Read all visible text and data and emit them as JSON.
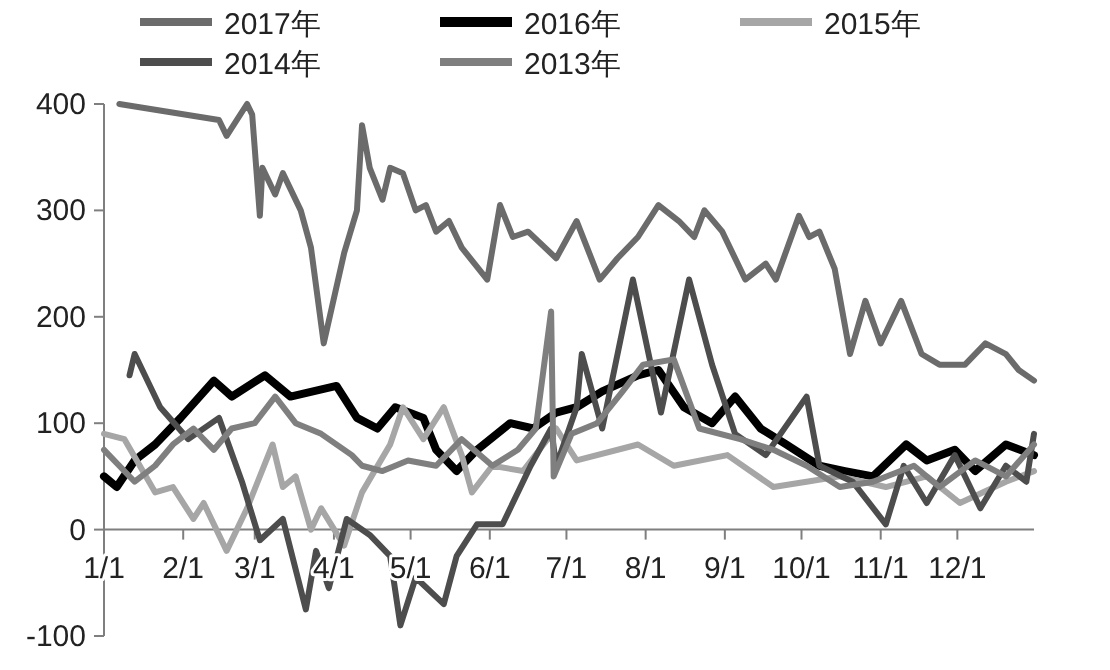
{
  "chart_data": {
    "type": "line",
    "legend": "top",
    "xlim": [
      "--01-01",
      "--12-31"
    ],
    "ylim": [
      -100,
      400
    ],
    "xticks": [
      {
        "value": "--01-01",
        "label": "1/1"
      },
      {
        "value": "--02-01",
        "label": "2/1"
      },
      {
        "value": "--03-01",
        "label": "3/1"
      },
      {
        "value": "--04-01",
        "label": "4/1"
      },
      {
        "value": "--05-01",
        "label": "5/1"
      },
      {
        "value": "--06-01",
        "label": "6/1"
      },
      {
        "value": "--07-01",
        "label": "7/1"
      },
      {
        "value": "--08-01",
        "label": "8/1"
      },
      {
        "value": "--09-01",
        "label": "9/1"
      },
      {
        "value": "--10-01",
        "label": "10/1"
      },
      {
        "value": "--11-01",
        "label": "11/1"
      },
      {
        "value": "--12-01",
        "label": "12/1"
      }
    ],
    "yticks": [
      -100,
      0,
      100,
      200,
      300,
      400
    ],
    "series": [
      {
        "name": "2017年",
        "color": "#6b6b6b",
        "x": [
          "--01-07",
          "--02-15",
          "--02-18",
          "--02-26",
          "--02-28",
          "--03-03",
          "--03-04",
          "--03-09",
          "--03-12",
          "--03-19",
          "--03-23",
          "--03-28",
          "--04-05",
          "--04-10",
          "--04-12",
          "--04-15",
          "--04-20",
          "--04-23",
          "--04-28",
          "--05-03",
          "--05-07",
          "--05-11",
          "--05-16",
          "--05-21",
          "--05-31",
          "--06-05",
          "--06-10",
          "--06-16",
          "--06-27",
          "--07-05",
          "--07-14",
          "--07-21",
          "--07-29",
          "--08-06",
          "--08-14",
          "--08-20",
          "--08-24",
          "--08-31",
          "--09-09",
          "--09-17",
          "--09-21",
          "--09-30",
          "--10-04",
          "--10-08",
          "--10-14",
          "--10-20",
          "--10-26",
          "--11-01",
          "--11-09",
          "--11-17",
          "--11-24",
          "--12-04",
          "--12-12",
          "--12-20",
          "--12-25",
          "--12-31"
        ],
        "values": [
          400,
          385,
          370,
          400,
          390,
          295,
          340,
          315,
          335,
          300,
          265,
          175,
          260,
          300,
          380,
          340,
          310,
          340,
          335,
          300,
          305,
          280,
          290,
          265,
          235,
          305,
          275,
          280,
          255,
          290,
          235,
          255,
          275,
          305,
          290,
          275,
          300,
          280,
          235,
          250,
          235,
          295,
          275,
          280,
          245,
          165,
          215,
          175,
          215,
          165,
          155,
          155,
          175,
          165,
          150,
          140
        ]
      },
      {
        "name": "2016年",
        "color": "#000000",
        "x": [
          "--01-01",
          "--01-06",
          "--01-13",
          "--01-21",
          "--01-31",
          "--02-13",
          "--02-20",
          "--03-05",
          "--03-15",
          "--04-02",
          "--04-10",
          "--04-18",
          "--04-25",
          "--05-06",
          "--05-11",
          "--05-19",
          "--05-27",
          "--06-09",
          "--06-18",
          "--06-27",
          "--07-05",
          "--07-15",
          "--07-29",
          "--08-06",
          "--08-16",
          "--08-27",
          "--09-05",
          "--09-15",
          "--09-25",
          "--10-08",
          "--10-18",
          "--10-29",
          "--11-11",
          "--11-19",
          "--11-30",
          "--12-08",
          "--12-20",
          "--12-31"
        ],
        "values": [
          50,
          40,
          65,
          80,
          105,
          140,
          125,
          145,
          125,
          135,
          105,
          95,
          115,
          105,
          75,
          55,
          75,
          100,
          95,
          110,
          115,
          130,
          145,
          150,
          115,
          100,
          125,
          95,
          80,
          60,
          55,
          50,
          80,
          65,
          75,
          55,
          80,
          70
        ]
      },
      {
        "name": "2015年",
        "color": "#a6a6a6",
        "x": [
          "--01-01",
          "--01-09",
          "--01-21",
          "--01-28",
          "--02-05",
          "--02-09",
          "--02-18",
          "--02-26",
          "--03-08",
          "--03-12",
          "--03-17",
          "--03-23",
          "--03-27",
          "--04-05",
          "--04-12",
          "--04-23",
          "--04-28",
          "--05-06",
          "--05-14",
          "--05-21",
          "--05-25",
          "--06-02",
          "--06-14",
          "--06-22",
          "--06-27",
          "--07-05",
          "--07-29",
          "--08-12",
          "--09-02",
          "--09-20",
          "--10-03",
          "--10-16",
          "--11-03",
          "--11-19",
          "--12-02",
          "--12-20",
          "--12-31"
        ],
        "values": [
          90,
          85,
          35,
          40,
          10,
          25,
          -20,
          20,
          80,
          40,
          50,
          0,
          20,
          -15,
          35,
          80,
          115,
          85,
          115,
          70,
          35,
          60,
          55,
          80,
          95,
          65,
          80,
          60,
          70,
          40,
          45,
          50,
          40,
          50,
          25,
          45,
          55
        ]
      },
      {
        "name": "2014年",
        "color": "#4d4d4d",
        "x": [
          "--01-11",
          "--01-13",
          "--01-23",
          "--02-03",
          "--02-15",
          "--02-24",
          "--03-03",
          "--03-12",
          "--03-21",
          "--03-25",
          "--03-30",
          "--04-06",
          "--04-15",
          "--04-23",
          "--04-27",
          "--05-03",
          "--05-14",
          "--05-19",
          "--05-27",
          "--06-06",
          "--06-17",
          "--06-25",
          "--06-27",
          "--07-05",
          "--07-07",
          "--07-15",
          "--07-27",
          "--08-07",
          "--08-18",
          "--08-27",
          "--09-05",
          "--09-17",
          "--10-03",
          "--10-08",
          "--10-21",
          "--11-03",
          "--11-10",
          "--11-19",
          "--11-30",
          "--12-10",
          "--12-20",
          "--12-28",
          "--12-31"
        ],
        "values": [
          145,
          165,
          115,
          85,
          105,
          45,
          -10,
          10,
          -75,
          -20,
          -55,
          10,
          -5,
          -25,
          -90,
          -45,
          -70,
          -25,
          5,
          5,
          60,
          95,
          60,
          115,
          165,
          95,
          235,
          110,
          235,
          155,
          90,
          70,
          125,
          60,
          45,
          5,
          60,
          25,
          70,
          20,
          60,
          45,
          90
        ]
      },
      {
        "name": "2013年",
        "color": "#7f7f7f",
        "x": [
          "--01-01",
          "--01-13",
          "--01-21",
          "--01-28",
          "--02-05",
          "--02-13",
          "--02-20",
          "--03-01",
          "--03-09",
          "--03-17",
          "--03-27",
          "--04-08",
          "--04-12",
          "--04-20",
          "--04-30",
          "--05-11",
          "--05-21",
          "--06-02",
          "--06-12",
          "--06-19",
          "--06-25",
          "--06-26",
          "--07-03",
          "--07-13",
          "--07-23",
          "--07-31",
          "--08-12",
          "--08-22",
          "--09-07",
          "--09-20",
          "--10-03",
          "--10-16",
          "--10-29",
          "--11-14",
          "--11-24",
          "--12-08",
          "--12-20",
          "--12-31"
        ],
        "values": [
          75,
          45,
          60,
          80,
          95,
          75,
          95,
          100,
          125,
          100,
          90,
          70,
          60,
          55,
          65,
          60,
          85,
          60,
          75,
          95,
          205,
          50,
          90,
          100,
          130,
          155,
          160,
          95,
          85,
          75,
          60,
          40,
          45,
          60,
          40,
          65,
          50,
          80
        ]
      }
    ]
  }
}
